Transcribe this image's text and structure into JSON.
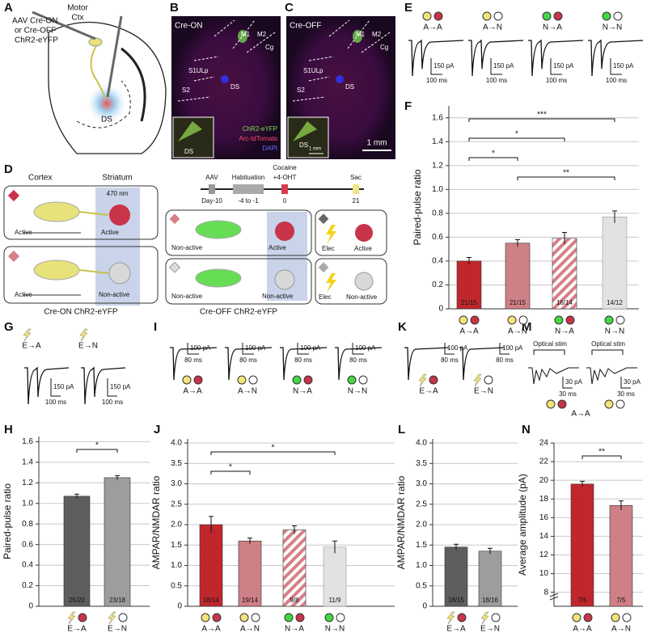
{
  "panel_a": {
    "letter": "A",
    "motor": [
      "Motor",
      "Ctx"
    ],
    "virus": [
      "AAV Cre-ON",
      "or Cre-OFF",
      "ChR2-eYFP"
    ],
    "region": "DS"
  },
  "panel_b": {
    "letter": "B",
    "title": "Cre-ON",
    "areas": [
      "M1",
      "M2",
      "Cg",
      "S1ULp",
      "S2",
      "DS"
    ],
    "inset": "DS",
    "legend": [
      "ChR2-eYFP",
      "Arc-tdTomato",
      "DAPI"
    ]
  },
  "panel_c": {
    "letter": "C",
    "title": "Cre-OFF",
    "areas": [
      "M1",
      "M2",
      "Cg",
      "S1ULp",
      "S2",
      "DS"
    ],
    "inset": "DS",
    "inset_scale": "1 mm",
    "scale": "1 mm"
  },
  "panel_d": {
    "letter": "D",
    "cortex": "Cortex",
    "striatum": "Striatum",
    "light": "470 nm",
    "cre_on": [
      [
        "Active",
        "Active"
      ],
      [
        "Active",
        "Non-active"
      ]
    ],
    "cre_on_label": "Cre-ON ChR2-eYFP",
    "timeline": {
      "events": [
        "AAV",
        "Habituation",
        "Cocaine",
        "+4-OHT",
        "Sac"
      ],
      "days": [
        "Day-10",
        "-4 to -1",
        "0",
        "21"
      ]
    },
    "cre_off": [
      [
        "Non-active",
        "Active"
      ],
      [
        "Non-active",
        "Non-active"
      ]
    ],
    "cre_off_label": "Cre-OFF ChR2-eYFP",
    "elec": [
      [
        "Elec",
        "Active"
      ],
      [
        "Elec",
        "Non-active"
      ]
    ]
  },
  "panel_e": {
    "letter": "E",
    "labels": [
      "A→A",
      "A→N",
      "N→A",
      "N→N"
    ],
    "markers": [
      [
        "#f3e47a",
        "#c8344a"
      ],
      [
        "#f3e47a",
        "#ffffff"
      ],
      [
        "#43d743",
        "#c8344a"
      ],
      [
        "#43d743",
        "#ffffff"
      ]
    ],
    "scale_y": "150 pA",
    "scale_x": "100 ms"
  },
  "panel_g": {
    "letter": "G",
    "labels": [
      "E→A",
      "E→N"
    ],
    "markers": [
      [
        "#f3e47a",
        "#c8344a"
      ],
      [
        "#f3e47a",
        "#ffffff"
      ]
    ],
    "scale_y": "150 pA",
    "scale_x": "100 ms"
  },
  "panel_i": {
    "letter": "I",
    "labels": [
      "A→A",
      "A→N",
      "N→A",
      "N→N"
    ],
    "markers": [
      [
        "#f3e47a",
        "#c8344a"
      ],
      [
        "#f3e47a",
        "#ffffff"
      ],
      [
        "#43d743",
        "#c8344a"
      ],
      [
        "#43d743",
        "#ffffff"
      ]
    ],
    "scale_y": "100 pA",
    "scale_x": "80 ms"
  },
  "panel_k": {
    "letter": "K",
    "labels": [
      "E→A",
      "E→N"
    ],
    "markers": [
      [
        "#f3e47a",
        "#c8344a"
      ],
      [
        "#f3e47a",
        "#ffffff"
      ]
    ],
    "scale_y": "100 pA",
    "scale_x": "80 ms"
  },
  "panel_m": {
    "letter": "M",
    "stim": "Optical stim",
    "scale_y": "30 pA",
    "scale_x": "30 ms",
    "label": "A→A",
    "markers": [
      [
        "#f3e47a",
        "#c8344a"
      ],
      [
        "#f3e47a",
        "#ffffff"
      ]
    ]
  },
  "chart_data": [
    {
      "type": "bar",
      "panel": "F",
      "ylabel": "Paired-pulse ratio",
      "categories": [
        "A→A",
        "A→N",
        "N→A",
        "N→N"
      ],
      "values": [
        0.4,
        0.55,
        0.59,
        0.77
      ],
      "errors": [
        0.03,
        0.03,
        0.05,
        0.05
      ],
      "n_labels": [
        "21/15",
        "21/15",
        "16/14",
        "14/12"
      ],
      "colors": [
        "#c0272d",
        "#cf7f86",
        "#d77f87",
        "#e2e2e2"
      ],
      "hatch": [
        false,
        false,
        true,
        false
      ],
      "markers": [
        [
          "#f3e47a",
          "#c8344a"
        ],
        [
          "#f3e47a",
          "#ffffff"
        ],
        [
          "#43d743",
          "#c8344a"
        ],
        [
          "#43d743",
          "#ffffff"
        ]
      ],
      "pre_shape": "circle",
      "ylim": [
        0,
        1.7
      ],
      "yticks": [
        0,
        0.2,
        0.4,
        0.6,
        0.8,
        {
          "value": 1,
          "label": "1.0"
        },
        1.2,
        1.4,
        1.6
      ],
      "grid": true,
      "significance": [
        {
          "label": "***",
          "pair": [
            0,
            3
          ]
        },
        {
          "label": "*",
          "pair": [
            0,
            2
          ]
        },
        {
          "label": "*",
          "pair": [
            0,
            1
          ]
        },
        {
          "label": "**",
          "pair": [
            1,
            3
          ]
        }
      ]
    },
    {
      "type": "bar",
      "panel": "H",
      "ylabel": "Paired-pulse ratio",
      "categories": [
        "E→A",
        "E→N"
      ],
      "values": [
        1.07,
        1.25
      ],
      "errors": [
        0.02,
        0.02
      ],
      "n_labels": [
        "25/20",
        "23/18"
      ],
      "colors": [
        "#5e5e5e",
        "#9d9d9d"
      ],
      "hatch": [
        false,
        false
      ],
      "markers": [
        [
          "#f3e47a",
          "#c8344a"
        ],
        [
          "#f3e47a",
          "#ffffff"
        ]
      ],
      "pre_shape": "bolt",
      "ylim": [
        0,
        1.65
      ],
      "yticks": [
        0,
        0.2,
        0.4,
        0.6,
        0.8,
        {
          "value": 1,
          "label": "1.0"
        },
        1.2,
        1.4,
        1.6
      ],
      "grid": true,
      "significance": [
        {
          "label": "*",
          "pair": [
            0,
            1
          ]
        }
      ]
    },
    {
      "type": "bar",
      "panel": "J",
      "ylabel": "AMPAR/NMDAR ratio",
      "categories": [
        "A→A",
        "A→N",
        "N→A",
        "N→N"
      ],
      "values": [
        2,
        1.6,
        1.87,
        1.45
      ],
      "errors": [
        0.2,
        0.07,
        0.1,
        0.15
      ],
      "n_labels": [
        "18/14",
        "19/14",
        "9/8",
        "11/9"
      ],
      "colors": [
        "#c0272d",
        "#cf7f86",
        "#d77f87",
        "#e2e2e2"
      ],
      "hatch": [
        false,
        false,
        true,
        false
      ],
      "markers": [
        [
          "#f3e47a",
          "#c8344a"
        ],
        [
          "#f3e47a",
          "#ffffff"
        ],
        [
          "#43d743",
          "#c8344a"
        ],
        [
          "#43d743",
          "#ffffff"
        ]
      ],
      "pre_shape": "circle",
      "ylim": [
        0,
        4.1
      ],
      "yticks": [
        0,
        0.5,
        {
          "value": 1,
          "label": "1.0"
        },
        1.5,
        {
          "value": 2,
          "label": "2.0"
        },
        2.5,
        {
          "value": 3,
          "label": "3.0"
        },
        3.5,
        {
          "value": 4,
          "label": "4.0"
        }
      ],
      "grid": true,
      "significance": [
        {
          "label": "*",
          "pair": [
            0,
            3
          ]
        },
        {
          "label": "*",
          "pair": [
            0,
            1
          ]
        }
      ]
    },
    {
      "type": "bar",
      "panel": "L",
      "ylabel": "AMPAR/NMDAR ratio",
      "categories": [
        "E→A",
        "E→N"
      ],
      "values": [
        1.45,
        1.35
      ],
      "errors": [
        0.07,
        0.07
      ],
      "n_labels": [
        "18/15",
        "18/16"
      ],
      "colors": [
        "#5e5e5e",
        "#9d9d9d"
      ],
      "hatch": [
        false,
        false
      ],
      "markers": [
        [
          "#f3e47a",
          "#c8344a"
        ],
        [
          "#f3e47a",
          "#ffffff"
        ]
      ],
      "pre_shape": "bolt",
      "ylim": [
        0,
        4.1
      ],
      "yticks": [
        0,
        0.5,
        {
          "value": 1,
          "label": "1.0"
        },
        1.5,
        {
          "value": 2,
          "label": "2.0"
        },
        2.5,
        {
          "value": 3,
          "label": "3.0"
        },
        3.5,
        {
          "value": 4,
          "label": "4.0"
        }
      ],
      "grid": true,
      "significance": []
    },
    {
      "type": "bar",
      "panel": "N",
      "ylabel": "Average amplitude (pA)",
      "categories": [
        "A→A",
        "A→N"
      ],
      "values": [
        19.6,
        17.3
      ],
      "errors": [
        0.3,
        0.5
      ],
      "n_labels": [
        "7/5",
        "7/5"
      ],
      "colors": [
        "#c0272d",
        "#cf7f86"
      ],
      "hatch": [
        false,
        false
      ],
      "markers": [
        [
          "#f3e47a",
          "#c8344a"
        ],
        [
          "#f3e47a",
          "#ffffff"
        ]
      ],
      "pre_shape": "circle",
      "ylim": [
        6.5,
        24
      ],
      "yticks": [
        8,
        10,
        12,
        14,
        16,
        18,
        20,
        22,
        24
      ],
      "grid": true,
      "axis_break": true,
      "significance": [
        {
          "label": "**",
          "pair": [
            0,
            1
          ]
        }
      ]
    }
  ]
}
